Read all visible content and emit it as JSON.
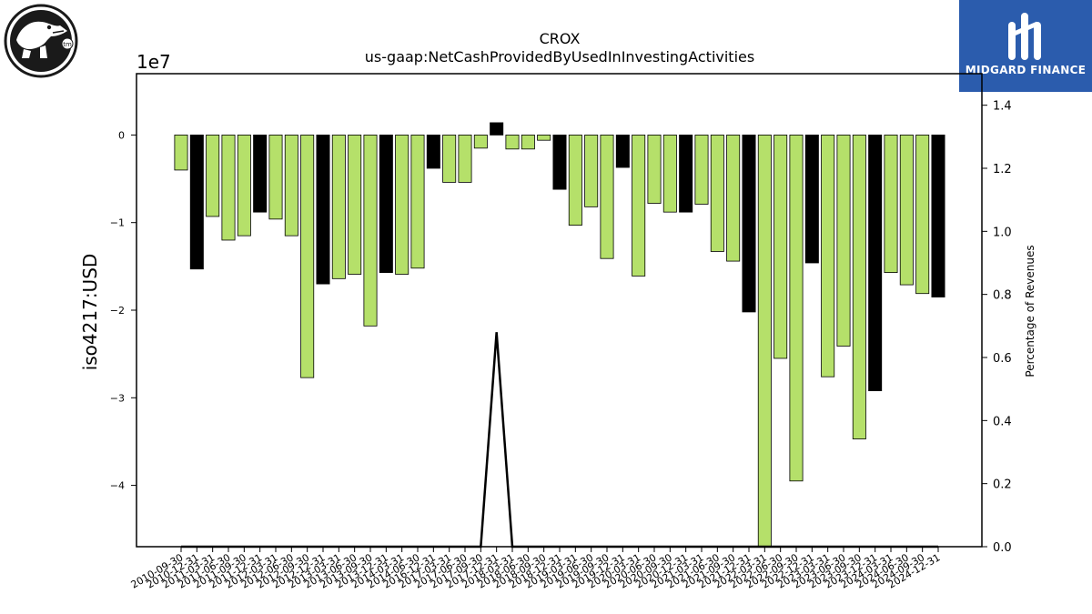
{
  "brand": {
    "name": "MIDGARD FINANCE"
  },
  "logo": {
    "icon": "crocodile-logo-icon",
    "mark": "tm"
  },
  "colors": {
    "positive_bar": "#b5e06a",
    "negative_bar": "#000000",
    "edge": "#000000",
    "line": "#000000"
  },
  "chart_data": {
    "type": "bar",
    "title": "CROX",
    "subtitle": "us-gaap:NetCashProvidedByUsedInInvestingActivities",
    "ylabel": "iso4217:USD",
    "y_multiplier_label": "1e7",
    "y2label": "Percentage of Revenues",
    "ylim": [
      -4.7,
      0.7
    ],
    "y_unit_scale": 10000000,
    "yticks": [
      "0",
      "−1",
      "−2",
      "−3",
      "−4"
    ],
    "yticks_values": [
      0,
      -1,
      -2,
      -3,
      -4
    ],
    "y2lim": [
      0.0,
      1.5
    ],
    "y2ticks": [
      "0.0",
      "0.2",
      "0.4",
      "0.6",
      "0.8",
      "1.0",
      "1.2",
      "1.4"
    ],
    "categories": [
      "2010-09-30",
      "2010-12-31",
      "2011-03-31",
      "2011-06-30",
      "2011-09-30",
      "2011-12-31",
      "2012-03-31",
      "2012-06-30",
      "2012-09-30",
      "2012-12-31",
      "2013-03-31",
      "2013-06-30",
      "2013-09-30",
      "2013-12-31",
      "2014-03-31",
      "2014-06-30",
      "2016-12-31",
      "2017-03-31",
      "2017-06-30",
      "2017-09-30",
      "2017-12-31",
      "2018-03-31",
      "2018-06-30",
      "2018-09-30",
      "2018-12-31",
      "2019-03-31",
      "2019-06-30",
      "2019-09-30",
      "2019-12-31",
      "2020-03-31",
      "2020-06-30",
      "2020-09-30",
      "2020-12-31",
      "2021-03-31",
      "2021-06-30",
      "2021-09-30",
      "2021-12-31",
      "2022-03-31",
      "2022-06-30",
      "2022-09-30",
      "2022-12-31",
      "2023-03-31",
      "2023-06-30",
      "2023-09-30",
      "2023-12-31",
      "2024-03-31",
      "2024-06-30",
      "2024-09-30",
      "2024-12-31"
    ],
    "values": [
      -0.4,
      -1.53,
      -0.93,
      -1.2,
      -1.15,
      -0.88,
      -0.96,
      -1.15,
      -2.77,
      -1.7,
      -1.64,
      -1.59,
      -2.18,
      -1.57,
      -1.59,
      -1.52,
      -0.38,
      -0.54,
      -0.54,
      -0.15,
      0.14,
      -0.16,
      -0.16,
      -0.06,
      -0.62,
      -1.03,
      -0.82,
      -1.41,
      -0.37,
      -1.61,
      -0.78,
      -0.88,
      -0.88,
      -0.79,
      -1.33,
      -1.44,
      -2.02,
      -4.7,
      -2.55,
      -3.95,
      -1.46,
      -2.76,
      -2.41,
      -3.47,
      -2.92,
      -1.57,
      -1.71,
      -1.81,
      -1.85
    ],
    "bar_colors": [
      "green",
      "black",
      "green",
      "green",
      "green",
      "black",
      "green",
      "green",
      "green",
      "black",
      "green",
      "green",
      "green",
      "black",
      "green",
      "green",
      "black",
      "green",
      "green",
      "green",
      "black",
      "green",
      "green",
      "green",
      "black",
      "green",
      "green",
      "green",
      "black",
      "green",
      "green",
      "green",
      "black",
      "green",
      "green",
      "green",
      "black",
      "green",
      "green",
      "green",
      "black",
      "green",
      "green",
      "green",
      "black",
      "green",
      "green",
      "green",
      "black"
    ],
    "series2": {
      "type": "line",
      "y2": [
        0,
        0,
        0,
        0,
        0,
        0,
        0,
        0,
        0,
        0,
        0,
        0,
        0,
        0,
        0,
        0,
        0,
        0,
        0,
        0,
        0.68,
        0,
        0,
        0,
        0,
        0,
        0,
        0,
        0,
        0,
        0,
        0,
        0,
        0,
        0,
        0,
        0,
        0,
        0,
        0,
        0,
        0,
        0,
        0,
        0,
        0,
        0,
        0,
        0
      ]
    }
  }
}
